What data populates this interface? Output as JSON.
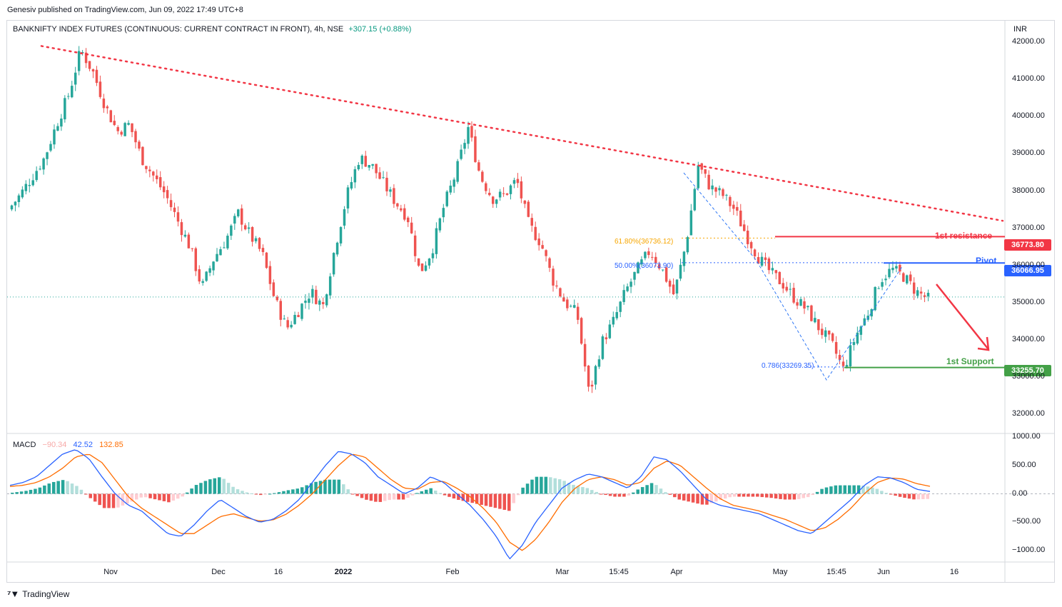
{
  "header": {
    "publisher": "Genesiv published on TradingView.com, Jun 09, 2022 17:49 UTC+8",
    "symbol": "BANKNIFTY INDEX FUTURES (CONTINUOUS: CURRENT CONTRACT IN FRONT), 4h, NSE",
    "change": "+307.15 (+0.88%)",
    "currency": "INR"
  },
  "macd_legend": {
    "label": "MACD",
    "hist": "−90.34",
    "macd": "42.52",
    "signal": "132.85"
  },
  "footer": {
    "brand": "TradingView"
  },
  "annotations": {
    "resistance_label": "1st resistance",
    "pivot_label": "Pivot",
    "support_label": "1st Support",
    "fib_618": "61.80%(36736.12)",
    "fib_50": "50.00%(36073.90)",
    "fib_786": "0.786(33269.35)"
  },
  "price_tags": {
    "resistance": "36773.80",
    "pivot": "36066.95",
    "support": "33255.70"
  },
  "colors": {
    "up": "#26a69a",
    "down": "#ef5350",
    "resistance": "#f23645",
    "pivot": "#2962ff",
    "support": "#43a047",
    "fib618": "#f7a600",
    "macd": "#2962ff",
    "signal": "#ff6d00"
  },
  "chart_data": [
    {
      "type": "line",
      "subtype": "candlestick",
      "title": "BANKNIFTY INDEX FUTURES (CONTINUOUS: CURRENT CONTRACT IN FRONT), 4h, NSE",
      "ylabel": "INR",
      "ylim": [
        31500,
        42600
      ],
      "y_ticks": [
        "42000.00",
        "41000.00",
        "40000.00",
        "39000.00",
        "38000.00",
        "37000.00",
        "36000.00",
        "35000.00",
        "34000.00",
        "33000.00",
        "32000.00"
      ],
      "x_ticks": [
        {
          "label": "Nov",
          "bold": false
        },
        {
          "label": "Dec",
          "bold": false
        },
        {
          "label": "16",
          "bold": false
        },
        {
          "label": "2022",
          "bold": true
        },
        {
          "label": "Feb",
          "bold": false
        },
        {
          "label": "Mar",
          "bold": false
        },
        {
          "label": "15:45",
          "bold": false
        },
        {
          "label": "Apr",
          "bold": false
        },
        {
          "label": "May",
          "bold": false
        },
        {
          "label": "15:45",
          "bold": false
        },
        {
          "label": "Jun",
          "bold": false
        },
        {
          "label": "16",
          "bold": false
        }
      ],
      "series": [
        {
          "name": "close",
          "values": [
            37500,
            37900,
            38400,
            38900,
            39800,
            40600,
            41800,
            41200,
            40300,
            39600,
            39800,
            38900,
            38400,
            37900,
            37200,
            36500,
            35400,
            36200,
            36700,
            37400,
            36800,
            36300,
            35100,
            34300,
            34800,
            35300,
            34900,
            36500,
            37900,
            38900,
            38700,
            38200,
            37700,
            37300,
            35800,
            36400,
            37600,
            38500,
            39700,
            38400,
            37800,
            37900,
            38300,
            37100,
            36600,
            35600,
            35000,
            34700,
            32500,
            33900,
            34500,
            35300,
            35900,
            36400,
            35900,
            35200,
            36600,
            38700,
            38100,
            37900,
            37500,
            36800,
            36200,
            35800,
            35500,
            35100,
            34800,
            34300,
            33900,
            33200,
            34100,
            34700,
            35600,
            35900,
            35700,
            35300,
            35100
          ]
        }
      ],
      "levels": [
        {
          "name": "1st resistance",
          "value": 36773.8
        },
        {
          "name": "Pivot",
          "value": 36066.95
        },
        {
          "name": "1st Support",
          "value": 33255.7
        }
      ],
      "fib_levels": [
        {
          "label": "61.80%(36736.12)",
          "value": 36736.12
        },
        {
          "label": "50.00%(36073.90)",
          "value": 36073.9
        },
        {
          "label": "0.786(33269.35)",
          "value": 33269.35
        }
      ],
      "trendline": {
        "start": 41900,
        "end": 37200
      },
      "last_price": 35150
    },
    {
      "type": "line",
      "title": "MACD",
      "ylim": [
        -1200,
        1050
      ],
      "y_ticks": [
        "1000.00",
        "500.00",
        "0.00",
        "−500.00",
        "−1000.00"
      ],
      "series": [
        {
          "name": "MACD",
          "values": [
            150,
            200,
            300,
            500,
            700,
            780,
            620,
            300,
            0,
            -200,
            -300,
            -500,
            -700,
            -750,
            -550,
            -300,
            -100,
            -250,
            -400,
            -500,
            -450,
            -300,
            -100,
            200,
            500,
            750,
            700,
            550,
            300,
            150,
            0,
            100,
            300,
            200,
            0,
            -200,
            -450,
            -750,
            -1150,
            -900,
            -500,
            -200,
            100,
            250,
            350,
            300,
            200,
            100,
            300,
            650,
            600,
            400,
            150,
            -100,
            -200,
            -250,
            -300,
            -350,
            -450,
            -550,
            -650,
            -700,
            -500,
            -300,
            -100,
            150,
            300,
            280,
            200,
            80,
            42.52
          ]
        },
        {
          "name": "signal",
          "values": [
            130,
            150,
            200,
            300,
            450,
            650,
            700,
            550,
            250,
            -50,
            -250,
            -400,
            -550,
            -700,
            -700,
            -550,
            -400,
            -350,
            -420,
            -480,
            -460,
            -360,
            -200,
            0,
            250,
            500,
            700,
            650,
            450,
            250,
            100,
            80,
            200,
            220,
            100,
            -50,
            -250,
            -500,
            -850,
            -1000,
            -800,
            -500,
            -150,
            100,
            250,
            300,
            250,
            150,
            200,
            450,
            580,
            500,
            300,
            100,
            -80,
            -200,
            -250,
            -300,
            -380,
            -450,
            -550,
            -650,
            -600,
            -450,
            -250,
            0,
            200,
            280,
            260,
            180,
            132.85
          ]
        },
        {
          "name": "histogram",
          "values": [
            20,
            50,
            100,
            200,
            250,
            130,
            -80,
            -250,
            -250,
            -150,
            -50,
            -100,
            -150,
            -50,
            150,
            250,
            300,
            100,
            20,
            -20,
            10,
            60,
            100,
            200,
            250,
            250,
            0,
            -100,
            -150,
            -100,
            -100,
            20,
            100,
            -20,
            -100,
            -150,
            -200,
            -250,
            -300,
            100,
            300,
            300,
            250,
            150,
            100,
            0,
            -50,
            -50,
            100,
            200,
            20,
            -100,
            -150,
            -200,
            -120,
            -50,
            -50,
            -50,
            -70,
            -100,
            -100,
            -50,
            100,
            150,
            150,
            150,
            100,
            0,
            -60,
            -100,
            -90.34
          ]
        }
      ]
    }
  ]
}
